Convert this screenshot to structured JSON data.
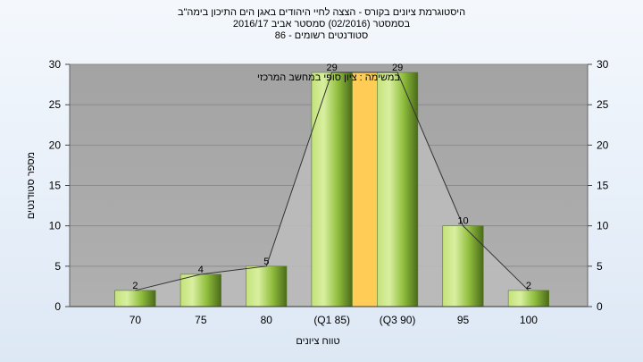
{
  "header": {
    "title_line1": "היסטוגרמת ציונים בקורס - הצצה לחיי היהודים באגן הים התיכון בימה\"ב",
    "title_line2": "בסמסטר  (02/2016)  סמסטר אביב 2016/17",
    "title_line3": "סטודנטים רשומים - 86"
  },
  "chart_data": {
    "type": "bar",
    "categories": [
      "70",
      "75",
      "80",
      "(Q1 85)",
      "(Q3 90)",
      "95",
      "100"
    ],
    "values": [
      2,
      4,
      5,
      29,
      29,
      10,
      2
    ],
    "xlabel": "טווח ציונים",
    "ylabel": "מספר סטודנטים",
    "ylim": [
      0,
      30
    ],
    "yticks": [
      0,
      5,
      10,
      15,
      20,
      25,
      30
    ],
    "grid": true,
    "annotation": "במשימה : ציון סופי במחשב המרכזי",
    "highlight_band_between": [
      "(Q1 85)",
      "(Q3 90)"
    ],
    "colors": {
      "plot_background": "#a6a6a6",
      "bar": "#8fbd3c",
      "bar_light": "#d9efa0",
      "bar_dark": "#4a6a1a",
      "highlight_band": "#ffcc55",
      "curve_fill": "#bcbcbc"
    }
  }
}
